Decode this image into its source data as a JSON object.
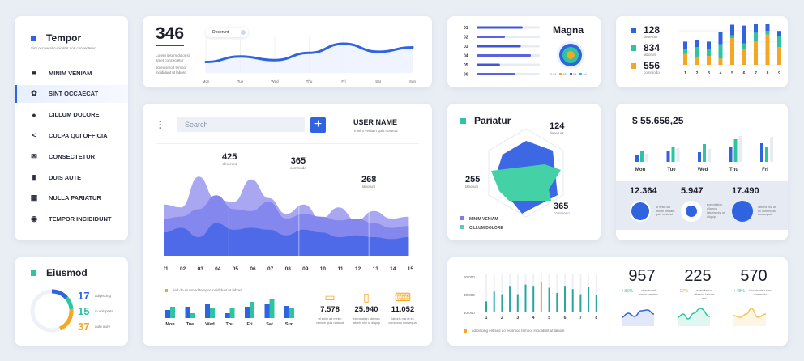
{
  "sidebar": {
    "title": "Tempor",
    "subtitle": "Sint occaecat cupidatat non consectetur",
    "active_index": 1,
    "items": [
      {
        "label": "MINIM VENIAM",
        "icon": "briefcase-icon"
      },
      {
        "label": "SINT OCCAECAT",
        "icon": "gear-icon"
      },
      {
        "label": "CILLUM DOLORE",
        "icon": "info-icon"
      },
      {
        "label": "CULPA QUI OFFICIA",
        "icon": "share-icon"
      },
      {
        "label": "CONSECTETUR",
        "icon": "mail-icon"
      },
      {
        "label": "DUIS AUTE",
        "icon": "bar-chart-icon"
      },
      {
        "label": "NULLA PARIATUR",
        "icon": "calculator-icon"
      },
      {
        "label": "TEMPOR INCIDIDUNT",
        "icon": "globe-icon"
      }
    ]
  },
  "eiusmod": {
    "title": "Eiusmod",
    "items": [
      {
        "value": "17",
        "label": "adipiscing",
        "color": "#2f63e0"
      },
      {
        "value": "15",
        "label": "in voluptate",
        "color": "#2ec4a0"
      },
      {
        "value": "37",
        "label": "aute irure",
        "color": "#f5a623"
      }
    ]
  },
  "top_chart": {
    "value": "346",
    "pill": "Deserunt",
    "desc1": "Lorem ipsum dolor sit amet consectetur",
    "desc2": "do eiusmod tempor incididunt ut labore"
  },
  "magna": {
    "title": "Magna",
    "legend": [
      "01",
      "02",
      "03",
      "04"
    ]
  },
  "stacked": {
    "items": [
      {
        "value": "128",
        "label": "deserunt",
        "color": "#2f63e0"
      },
      {
        "value": "834",
        "label": "laborum",
        "color": "#2ec4a0"
      },
      {
        "value": "556",
        "label": "commodo",
        "color": "#f5a623"
      }
    ]
  },
  "main": {
    "search_placeholder": "Search",
    "user_name": "USER NAME",
    "user_sub": "minim veniam quis nostrud",
    "peaks": [
      {
        "value": "425",
        "label": "deserunt"
      },
      {
        "value": "365",
        "label": "commodo"
      },
      {
        "value": "268",
        "label": "laborum"
      }
    ],
    "legend": "sed do eiusmod tempor incididunt ut labore",
    "devices": [
      {
        "icon": "monitor-icon",
        "value": "7.578",
        "label": "ut enim ad minim veniam quis nostrud"
      },
      {
        "icon": "tablet-icon",
        "value": "25.940",
        "label": "exercitation ullamco laboris nisi ut aliquip"
      },
      {
        "icon": "laptop-icon",
        "value": "11.052",
        "label": "laboris nisi ut ex commodo consequat"
      }
    ]
  },
  "pariatur": {
    "title": "Pariatur",
    "labels": [
      {
        "value": "124",
        "label": "deserunt"
      },
      {
        "value": "255",
        "label": "laborum"
      },
      {
        "value": "365",
        "label": "commodo"
      }
    ],
    "legend": [
      "MINIM VENIAM",
      "CILLUM DOLORE"
    ]
  },
  "revenue": {
    "total": "$ 55.656,25",
    "stats": [
      {
        "value": "12.364",
        "label": "ut enim ad minim veniam quis nostrud",
        "fill": 0.75
      },
      {
        "value": "5.947",
        "label": "exercitation ullamco laboris nisi ut aliquip",
        "fill": 0.35
      },
      {
        "value": "17.490",
        "label": "laboris nisi ut ex commodo consequat",
        "fill": 0.9
      }
    ]
  },
  "bottom": {
    "legend": "adipiscing elit sed do eiusmod tempor incididunt ut labore",
    "kpis": [
      {
        "value": "957",
        "change": "+35%",
        "label": "ut enim ad minim veniam",
        "color": "#2ec4a0",
        "line": "#2f63e0"
      },
      {
        "value": "225",
        "change": "-17%",
        "label": "exercitation ullamco laboris nisi",
        "color": "#f5a623",
        "line": "#2ec4a0"
      },
      {
        "value": "570",
        "change": "+48%",
        "label": "laboris nisi ut ex commodo",
        "color": "#2ec4a0",
        "line": "#f5c453"
      }
    ]
  },
  "chart_data": [
    {
      "type": "line",
      "name": "weekly-line",
      "categories": [
        "Mon",
        "Tue",
        "Wed",
        "Thu",
        "Fri",
        "Sat",
        "Sun"
      ],
      "values": [
        30,
        45,
        35,
        55,
        80,
        58,
        70
      ]
    },
    {
      "type": "bar",
      "name": "magna-bars",
      "categories": [
        "01",
        "02",
        "03",
        "04",
        "05",
        "06"
      ],
      "values": [
        0.73,
        0.45,
        0.7,
        0.86,
        0.37,
        0.61
      ]
    },
    {
      "type": "bar",
      "name": "stacked-bars",
      "categories": [
        "1",
        "2",
        "3",
        "4",
        "5",
        "6",
        "7",
        "8",
        "9"
      ],
      "series": [
        {
          "name": "commodo",
          "values": [
            12,
            8,
            10,
            7,
            30,
            18,
            26,
            34,
            20
          ]
        },
        {
          "name": "laborum",
          "values": [
            6,
            12,
            8,
            16,
            3,
            6,
            10,
            4,
            12
          ]
        },
        {
          "name": "deserunt",
          "values": [
            8,
            8,
            8,
            14,
            12,
            20,
            20,
            8,
            6
          ]
        }
      ]
    },
    {
      "type": "area",
      "name": "main-area",
      "x": [
        "01",
        "02",
        "03",
        "04",
        "05",
        "06",
        "07",
        "08",
        "09",
        "10",
        "11",
        "12",
        "13",
        "14",
        "15"
      ],
      "series": [
        {
          "name": "back",
          "values": [
            55,
            52,
            85,
            60,
            58,
            82,
            62,
            45,
            55,
            40,
            52,
            38,
            48,
            40,
            42
          ]
        },
        {
          "name": "mid",
          "values": [
            40,
            42,
            50,
            65,
            50,
            48,
            58,
            40,
            45,
            42,
            38,
            40,
            35,
            30,
            32
          ]
        },
        {
          "name": "front",
          "values": [
            25,
            30,
            20,
            35,
            28,
            30,
            28,
            22,
            28,
            25,
            20,
            22,
            20,
            18,
            20
          ]
        }
      ]
    },
    {
      "type": "bar",
      "name": "week-grouped",
      "categories": [
        "Mon",
        "Tue",
        "Wed",
        "Thu",
        "Fri",
        "Sat",
        "Sun"
      ],
      "series": [
        {
          "name": "blue",
          "values": [
            10,
            14,
            18,
            6,
            14,
            18,
            15
          ]
        },
        {
          "name": "teal",
          "values": [
            14,
            6,
            12,
            12,
            20,
            23,
            12
          ]
        }
      ]
    },
    {
      "type": "bar",
      "name": "revenue-grouped",
      "categories": [
        "Mon",
        "Tue",
        "Wed",
        "Thu",
        "Fri"
      ],
      "series": [
        {
          "name": "blue",
          "values": [
            9,
            14,
            12,
            19,
            23
          ]
        },
        {
          "name": "teal",
          "values": [
            14,
            19,
            22,
            28,
            19
          ]
        },
        {
          "name": "grey",
          "values": [
            10,
            17,
            16,
            32,
            31
          ]
        }
      ]
    },
    {
      "type": "bar",
      "name": "vertical-bars",
      "yticks": [
        "10 000",
        "30 000",
        "60 000"
      ],
      "xticks": [
        "1",
        "2",
        "3",
        "4",
        "5",
        "6",
        "7",
        "8"
      ],
      "values": [
        17000,
        32000,
        28000,
        41000,
        28000,
        43000,
        41000,
        47000,
        38000,
        30000,
        41000,
        36000,
        28000,
        39000,
        27000
      ],
      "highlight_index": 7
    }
  ]
}
